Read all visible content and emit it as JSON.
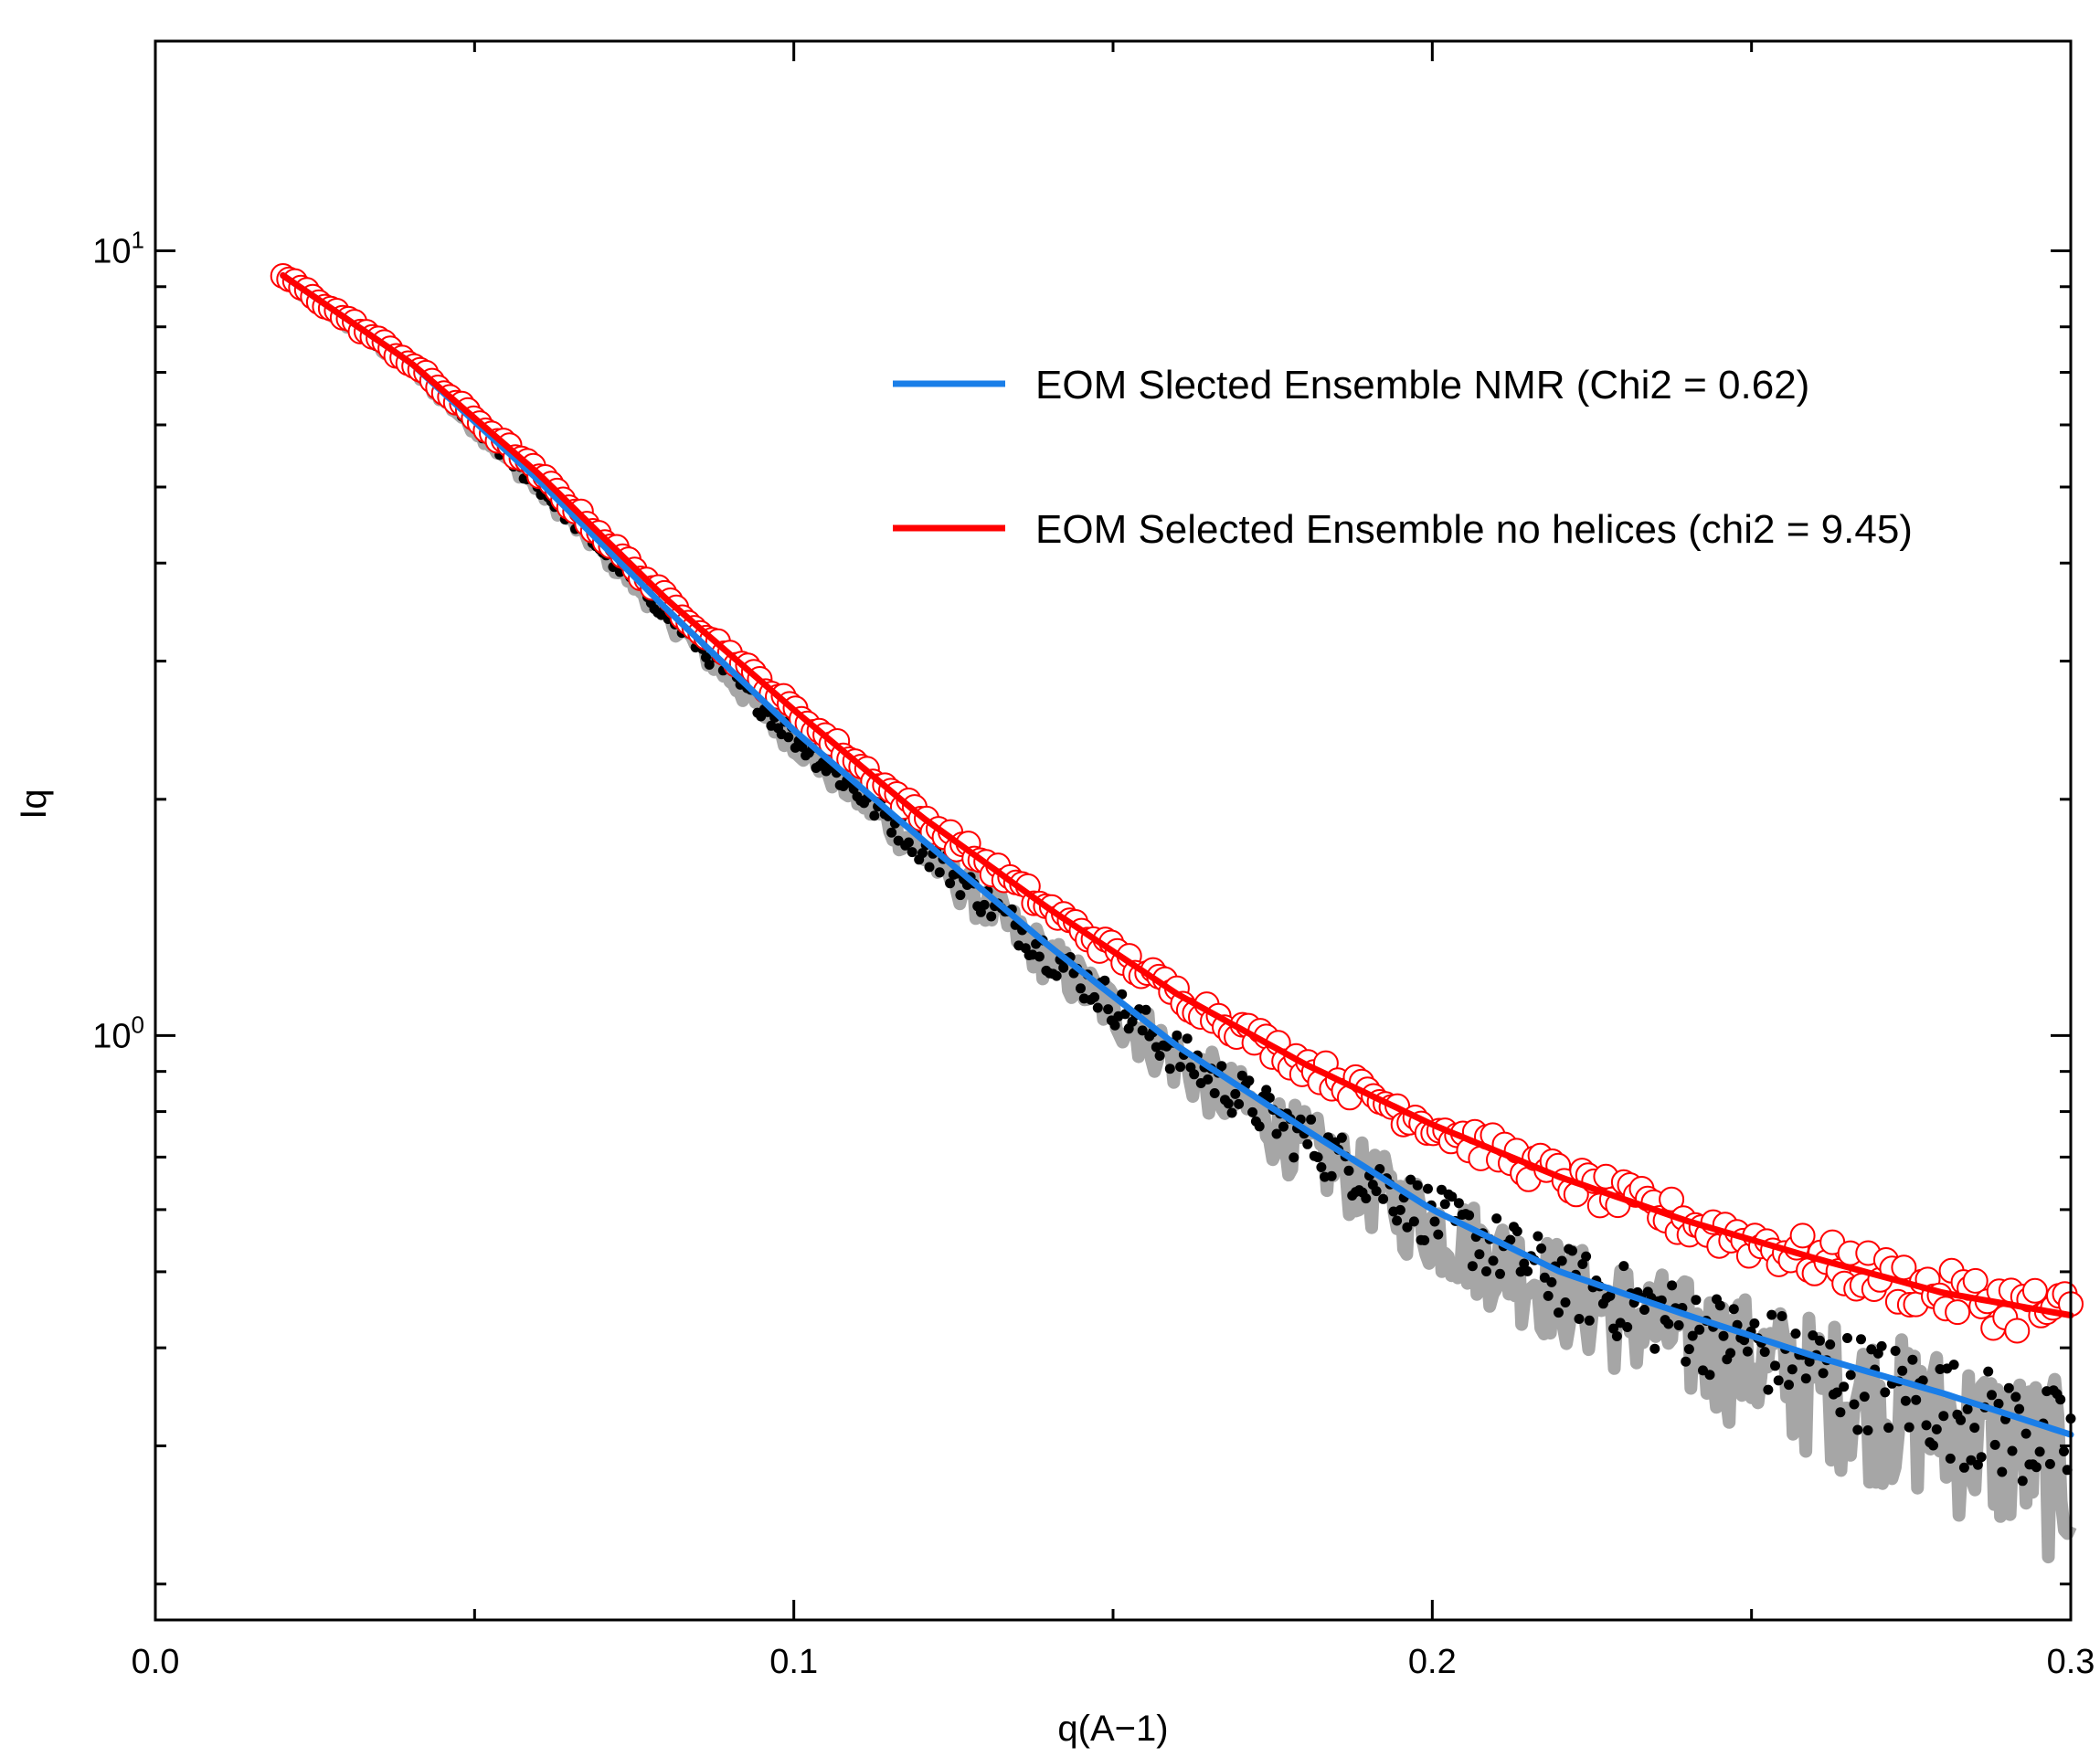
{
  "chart_data": {
    "type": "scatter",
    "title": "",
    "xlabel": "q(A−1)",
    "ylabel": "Iq",
    "xlim": [
      0.0,
      0.3
    ],
    "ylim": [
      0.18,
      18.5
    ],
    "yscale": "log",
    "grid": false,
    "legend_position": "top-right",
    "x_ticks": [
      {
        "value": 0.0,
        "label": "0.0"
      },
      {
        "value": 0.1,
        "label": "0.1"
      },
      {
        "value": 0.2,
        "label": "0.2"
      },
      {
        "value": 0.3,
        "label": "0.3"
      }
    ],
    "y_ticks": [
      {
        "value": 1,
        "base": "10",
        "exp": "0"
      },
      {
        "value": 10,
        "base": "10",
        "exp": "1"
      }
    ],
    "series": [
      {
        "name": "EOM Slected Ensemble NMR (Chi2 = 0.62)",
        "kind": "line",
        "color": "#1a7ee8",
        "x": [
          0.02,
          0.04,
          0.06,
          0.08,
          0.1,
          0.12,
          0.14,
          0.16,
          0.18,
          0.2,
          0.22,
          0.24,
          0.26,
          0.28,
          0.3
        ],
        "y": [
          9.3,
          7.2,
          5.1,
          3.5,
          2.45,
          1.78,
          1.3,
          0.97,
          0.76,
          0.6,
          0.5,
          0.44,
          0.39,
          0.35,
          0.31
        ]
      },
      {
        "name": "EOM Selected Ensemble no helices (chi2 = 9.45)",
        "kind": "line",
        "color": "#ff0000",
        "x": [
          0.02,
          0.04,
          0.06,
          0.08,
          0.1,
          0.12,
          0.14,
          0.16,
          0.18,
          0.2,
          0.22,
          0.24,
          0.26,
          0.28,
          0.3
        ],
        "y": [
          9.3,
          7.2,
          5.2,
          3.6,
          2.6,
          1.9,
          1.45,
          1.13,
          0.92,
          0.77,
          0.66,
          0.58,
          0.52,
          0.47,
          0.44
        ]
      },
      {
        "name": "",
        "kind": "open-circles",
        "color": "#ff0000",
        "x": [
          0.02,
          0.04,
          0.06,
          0.08,
          0.1,
          0.12,
          0.14,
          0.16,
          0.18,
          0.2,
          0.22,
          0.24,
          0.26,
          0.28,
          0.3
        ],
        "y": [
          9.3,
          7.2,
          5.2,
          3.6,
          2.6,
          1.9,
          1.45,
          1.13,
          0.92,
          0.77,
          0.66,
          0.58,
          0.52,
          0.47,
          0.44
        ]
      },
      {
        "name": "",
        "kind": "filled-points",
        "color": "#000000",
        "x": [
          0.02,
          0.04,
          0.06,
          0.08,
          0.1,
          0.12,
          0.14,
          0.16,
          0.18,
          0.2,
          0.22,
          0.24,
          0.26,
          0.28,
          0.3
        ],
        "y": [
          9.2,
          7.1,
          5.0,
          3.45,
          2.4,
          1.74,
          1.27,
          0.95,
          0.74,
          0.59,
          0.49,
          0.43,
          0.38,
          0.34,
          0.3
        ]
      },
      {
        "name": "",
        "kind": "error-band",
        "color": "#a6a6a6",
        "x": [
          0.02,
          0.04,
          0.06,
          0.08,
          0.1,
          0.12,
          0.14,
          0.16,
          0.18,
          0.2,
          0.22,
          0.24,
          0.26,
          0.28,
          0.3
        ],
        "y": [
          9.2,
          7.1,
          5.0,
          3.45,
          2.4,
          1.74,
          1.27,
          0.95,
          0.74,
          0.59,
          0.49,
          0.43,
          0.38,
          0.34,
          0.3
        ]
      }
    ]
  }
}
